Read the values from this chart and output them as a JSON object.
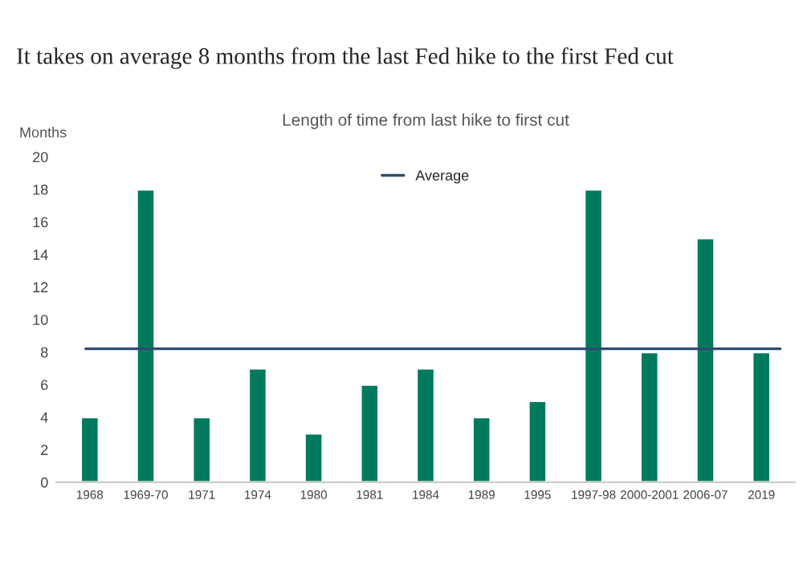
{
  "chart_data": {
    "type": "bar",
    "title": "It takes on average 8 months from the last Fed hike to the first Fed cut",
    "subtitle": "Length of time from last hike to first cut",
    "ylabel": "Months",
    "categories": [
      "1968",
      "1969-70",
      "1971",
      "1974",
      "1980",
      "1981",
      "1984",
      "1989",
      "1995",
      "1997-98",
      "2000-2001",
      "2006-07",
      "2019"
    ],
    "values": [
      4,
      18,
      4,
      7,
      3,
      6,
      7,
      4,
      5,
      18,
      8,
      15,
      8
    ],
    "color": "#007a5e",
    "ylim": [
      0,
      20
    ],
    "yticks": [
      0,
      2,
      4,
      6,
      8,
      10,
      12,
      14,
      16,
      18,
      20
    ],
    "ref_lines": [
      {
        "axis": "y",
        "value": 8.2,
        "label": "Average",
        "color": "#2f4b6e",
        "line_style": "solid"
      }
    ],
    "grid": false,
    "legend": "top"
  }
}
